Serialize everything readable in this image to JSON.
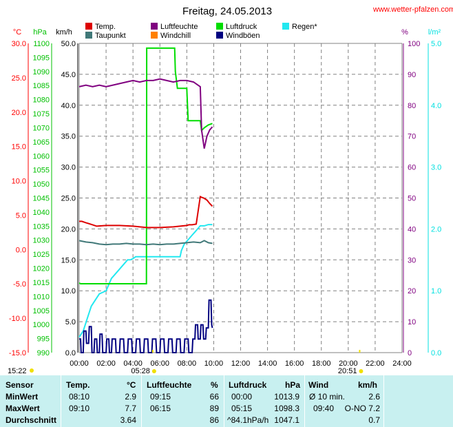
{
  "site": "www.wetter-pfalzen.com",
  "colors": {
    "temp": "#dd0000",
    "taupunkt": "#407878",
    "luftfeuchte": "#800080",
    "windchill": "#ff8000",
    "luftdruck": "#00dd00",
    "windboeen": "#000080",
    "regen": "#22e8f0",
    "grid": "#808080",
    "table_bg": "#c8f0f0"
  },
  "chart_data": {
    "type": "line",
    "title": "Freitag, 24.05.2013",
    "x_unit": "hours",
    "xlim": [
      0,
      24
    ],
    "x_ticks": [
      "00:00",
      "02:00",
      "04:00",
      "06:00",
      "08:00",
      "10:00",
      "12:00",
      "14:00",
      "16:00",
      "18:00",
      "20:00",
      "22:00",
      "24:00"
    ],
    "sun_events": [
      {
        "label": "05:28",
        "hour": 5.47
      },
      {
        "label": "20:51",
        "hour": 20.85
      }
    ],
    "corner_label": "15:22",
    "axes": [
      {
        "unit": "°C",
        "color": "#ff0000",
        "ylim": [
          -15,
          30
        ],
        "ticks": [
          "30.0",
          "25.0",
          "20.0",
          "15.0",
          "10.0",
          "5.0",
          "0.0",
          "-5.0",
          "-10.0",
          "-15.0"
        ]
      },
      {
        "unit": "hPa",
        "color": "#00c000",
        "ylim": [
          990,
          1100
        ],
        "ticks": [
          "1100",
          "1095",
          "1090",
          "1085",
          "1080",
          "1075",
          "1070",
          "1065",
          "1060",
          "1055",
          "1050",
          "1045",
          "1040",
          "1035",
          "1030",
          "1025",
          "1020",
          "1015",
          "1010",
          "1005",
          "1000",
          "995",
          "990"
        ]
      },
      {
        "unit": "km/h",
        "color": "#000000",
        "ylim": [
          0,
          50
        ],
        "ticks": [
          "50.0",
          "45.0",
          "40.0",
          "35.0",
          "30.0",
          "25.0",
          "20.0",
          "15.0",
          "10.0",
          "5.0",
          "0.0"
        ]
      },
      {
        "unit": "%",
        "color": "#800080",
        "ylim": [
          0,
          100
        ],
        "ticks": [
          "100",
          "90",
          "80",
          "70",
          "60",
          "50",
          "40",
          "30",
          "20",
          "10",
          "0"
        ]
      },
      {
        "unit": "l/m²",
        "color": "#00e0e0",
        "ylim": [
          0,
          5
        ],
        "ticks": [
          "5.0",
          "4.0",
          "3.0",
          "2.0",
          "1.0",
          "0.0"
        ]
      }
    ],
    "legend": [
      "Temp.",
      "Taupunkt",
      "Luftfeuchte",
      "Windchill",
      "Luftdruck",
      "Windböen",
      "Regen*"
    ],
    "series": [
      {
        "name": "Temp.",
        "axis": "°C",
        "x": [
          0,
          0.2,
          0.5,
          1,
          1.3,
          2,
          3,
          4,
          5,
          6,
          7,
          7.5,
          8.0,
          8.15,
          8.4,
          8.7,
          9.0,
          9.1,
          9.25,
          9.5,
          9.7,
          9.9
        ],
        "y": [
          4.1,
          4.1,
          3.9,
          3.6,
          3.4,
          3.5,
          3.5,
          3.4,
          3.2,
          3.2,
          3.3,
          3.4,
          3.5,
          3.6,
          3.6,
          3.7,
          7.7,
          7.6,
          7.5,
          7.2,
          6.7,
          6.3
        ]
      },
      {
        "name": "Taupunkt",
        "axis": "°C",
        "x": [
          0,
          0.5,
          1,
          1.5,
          2,
          2.5,
          3,
          3.5,
          4,
          4.5,
          5,
          5.5,
          6,
          6.5,
          7,
          7.5,
          8,
          8.5,
          9,
          9.3,
          9.6,
          9.9
        ],
        "y": [
          1.3,
          1.1,
          1.0,
          0.8,
          0.7,
          0.8,
          0.8,
          0.9,
          0.8,
          0.8,
          0.7,
          0.8,
          0.7,
          0.8,
          0.8,
          0.9,
          1.0,
          1.1,
          1.0,
          1.3,
          1.0,
          0.9
        ]
      },
      {
        "name": "Luftfeuchte",
        "axis": "%",
        "x": [
          0,
          0.5,
          1,
          1.5,
          2,
          2.5,
          3,
          3.5,
          4,
          4.5,
          5,
          5.5,
          6,
          6.5,
          7,
          7.5,
          8,
          8.5,
          9,
          9.1,
          9.3,
          9.5,
          9.7,
          9.9
        ],
        "y": [
          86,
          86.5,
          86,
          86.5,
          86,
          86.5,
          87,
          87.5,
          88,
          87.5,
          88,
          88,
          88.5,
          88,
          87.5,
          88,
          88,
          87.5,
          86,
          72,
          66,
          70,
          72,
          73
        ]
      },
      {
        "name": "Luftdruck",
        "axis": "hPa",
        "x": [
          0,
          0.1,
          5.0,
          5.02,
          5.2,
          7.1,
          7.15,
          7.3,
          8.0,
          8.1,
          8.3,
          9.0,
          9.1,
          9.3,
          9.6,
          9.9
        ],
        "y": [
          1014.8,
          1014.5,
          1014.5,
          1098.3,
          1098.3,
          1098.3,
          1090,
          1084,
          1084,
          1072.5,
          1072.5,
          1072.5,
          1069,
          1070,
          1071,
          1071.5
        ]
      },
      {
        "name": "Windböen",
        "axis": "km/h",
        "x": [
          0,
          0.1,
          0.15,
          0.3,
          0.35,
          0.5,
          0.55,
          0.7,
          0.75,
          0.9,
          0.95,
          1.1,
          1.15,
          1.3,
          1.35,
          1.5,
          1.55,
          1.7,
          1.75,
          2.0,
          2.05,
          2.2,
          2.25,
          2.4,
          2.45,
          2.7,
          2.75,
          3.0,
          3.05,
          3.3,
          3.35,
          3.6,
          3.65,
          3.9,
          3.95,
          4.2,
          4.25,
          4.5,
          4.55,
          4.8,
          4.85,
          5.1,
          5.15,
          5.4,
          5.45,
          5.7,
          5.75,
          6.0,
          6.05,
          6.3,
          6.35,
          6.6,
          6.65,
          6.9,
          6.95,
          7.2,
          7.25,
          7.5,
          7.55,
          7.8,
          7.85,
          8.1,
          8.15,
          8.4,
          8.45,
          8.6,
          8.65,
          8.8,
          8.85,
          9.0,
          9.05,
          9.2,
          9.25,
          9.4,
          9.45,
          9.6,
          9.65,
          9.8,
          9.85,
          9.9
        ],
        "y": [
          2.2,
          2.2,
          0,
          0,
          3.5,
          3.5,
          1.5,
          1.5,
          4.2,
          4.2,
          0,
          0,
          2.2,
          2.2,
          0,
          0,
          3,
          3,
          0,
          0,
          2.2,
          2.2,
          0,
          0,
          2.2,
          2.2,
          0,
          0,
          2.2,
          2.2,
          0,
          0,
          2.2,
          2.2,
          0,
          0,
          2.2,
          2.2,
          0,
          0,
          2.2,
          2.2,
          0,
          0,
          2.2,
          2.2,
          0,
          0,
          2.2,
          2.2,
          0,
          0,
          2.2,
          2.2,
          0,
          0,
          2.2,
          2.2,
          0,
          0,
          2.2,
          2.2,
          0,
          0,
          2.2,
          2.2,
          4.5,
          4.5,
          2.2,
          2.2,
          4.5,
          4.5,
          2.2,
          2.2,
          4.0,
          4.0,
          8.5,
          8.5,
          4.5,
          4.0
        ]
      },
      {
        "name": "Regen*",
        "axis": "l/m²",
        "x": [
          0,
          0.3,
          0.6,
          0.9,
          1.2,
          1.5,
          1.8,
          2.0,
          2.2,
          2.4,
          2.6,
          2.8,
          3.0,
          3.2,
          3.4,
          3.6,
          3.8,
          4.0,
          4.2,
          4.5,
          5.0,
          5.5,
          6.0,
          6.5,
          7.0,
          7.5,
          7.6,
          7.8,
          8.0,
          8.2,
          8.4,
          8.6,
          8.8,
          9.0,
          9.3,
          9.6,
          9.9
        ],
        "y": [
          0.25,
          0.35,
          0.55,
          0.75,
          0.85,
          0.95,
          0.98,
          1.0,
          1.1,
          1.2,
          1.25,
          1.3,
          1.35,
          1.4,
          1.45,
          1.5,
          1.5,
          1.52,
          1.55,
          1.55,
          1.55,
          1.55,
          1.55,
          1.55,
          1.55,
          1.55,
          1.65,
          1.75,
          1.8,
          1.85,
          1.9,
          1.95,
          2.0,
          2.05,
          2.05,
          2.07,
          2.07
        ]
      }
    ]
  },
  "table": {
    "headers": {
      "sensor": "Sensor",
      "temp": "Temp.",
      "temp_unit": "°C",
      "hum": "Luftfeuchte",
      "hum_unit": "%",
      "press": "Luftdruck",
      "press_unit": "hPa",
      "wind": "Wind",
      "wind_unit": "km/h"
    },
    "rows": [
      {
        "label": "MinWert",
        "temp_time": "08:10",
        "temp_val": "2.9",
        "hum_time": "09:15",
        "hum_val": "66",
        "press_time": "00:00",
        "press_val": "1013.9",
        "wind_time": "Ø 10 min.",
        "wind_val": "2.6"
      },
      {
        "label": "MaxWert",
        "temp_time": "09:10",
        "temp_val": "7.7",
        "hum_time": "06:15",
        "hum_val": "89",
        "press_time": "05:15",
        "press_val": "1098.3",
        "wind_time": "09:40",
        "wind_val": "O-NO 7.2"
      },
      {
        "label": "Durchschnitt",
        "temp_time": "",
        "temp_val": "3.64",
        "hum_time": "",
        "hum_val": "86",
        "press_time": "^84.1hPa/h",
        "press_val": "1047.1",
        "wind_time": "",
        "wind_val": "0.7"
      }
    ]
  }
}
